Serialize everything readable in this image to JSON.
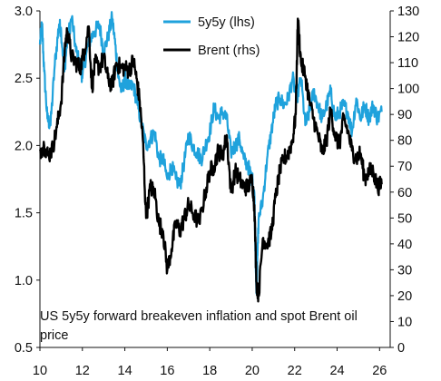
{
  "chart_data": {
    "type": "line",
    "title": "US 5y5y forward breakeven inflation and spot Brent oil price",
    "x_tick_labels": [
      "10",
      "12",
      "14",
      "16",
      "18",
      "20",
      "22",
      "24",
      "26"
    ],
    "x_range": [
      2010,
      2026.5
    ],
    "y_left": {
      "range": [
        0.5,
        3.0
      ],
      "ticks": [
        "0.5",
        "1.0",
        "1.5",
        "2.0",
        "2.5",
        "3.0"
      ]
    },
    "y_right": {
      "range": [
        0,
        130
      ],
      "ticks": [
        "0",
        "10",
        "20",
        "30",
        "40",
        "50",
        "60",
        "70",
        "80",
        "90",
        "100",
        "110",
        "120",
        "130"
      ]
    },
    "grid": false,
    "legend_position": "top-right",
    "series": [
      {
        "name": "5y5y (lhs)",
        "axis": "left",
        "color": "#1fa2dc",
        "x": [
          2010.0,
          2010.1,
          2010.2,
          2010.35,
          2010.5,
          2010.7,
          2010.9,
          2011.0,
          2011.15,
          2011.3,
          2011.5,
          2011.7,
          2011.9,
          2012.0,
          2012.2,
          2012.4,
          2012.6,
          2012.8,
          2013.0,
          2013.2,
          2013.4,
          2013.55,
          2013.7,
          2013.85,
          2014.0,
          2014.2,
          2014.4,
          2014.6,
          2014.8,
          2015.0,
          2015.2,
          2015.4,
          2015.6,
          2015.8,
          2016.0,
          2016.2,
          2016.4,
          2016.6,
          2016.8,
          2017.0,
          2017.2,
          2017.4,
          2017.6,
          2017.8,
          2018.0,
          2018.2,
          2018.4,
          2018.6,
          2018.8,
          2019.0,
          2019.2,
          2019.4,
          2019.6,
          2019.8,
          2020.0,
          2020.1,
          2020.2,
          2020.3,
          2020.5,
          2020.7,
          2020.9,
          2021.1,
          2021.3,
          2021.5,
          2021.7,
          2021.9,
          2022.1,
          2022.3,
          2022.5,
          2022.7,
          2022.9,
          2023.1,
          2023.3,
          2023.5,
          2023.7,
          2023.9,
          2024.1,
          2024.3,
          2024.5,
          2024.7,
          2024.9,
          2025.1,
          2025.3,
          2025.5,
          2025.7,
          2025.9,
          2026.1
        ],
        "y": [
          2.75,
          2.9,
          2.55,
          2.2,
          2.15,
          2.6,
          2.9,
          2.85,
          2.55,
          2.8,
          2.95,
          2.7,
          2.6,
          2.5,
          2.7,
          2.8,
          2.85,
          2.9,
          2.7,
          2.8,
          2.95,
          2.75,
          2.5,
          2.4,
          2.5,
          2.42,
          2.45,
          2.3,
          2.15,
          2.0,
          2.05,
          2.1,
          1.9,
          1.9,
          1.75,
          1.85,
          1.75,
          1.7,
          1.88,
          2.08,
          2.0,
          1.95,
          1.9,
          2.0,
          2.1,
          2.28,
          2.2,
          2.25,
          2.2,
          1.95,
          2.0,
          2.05,
          1.9,
          1.85,
          1.75,
          1.65,
          0.9,
          1.45,
          1.6,
          1.9,
          2.1,
          2.3,
          2.35,
          2.3,
          2.35,
          2.5,
          2.35,
          2.5,
          2.15,
          2.25,
          2.4,
          2.3,
          2.2,
          2.3,
          2.4,
          2.2,
          2.25,
          2.3,
          2.25,
          2.1,
          2.35,
          2.2,
          2.3,
          2.2,
          2.3,
          2.2,
          2.25
        ]
      },
      {
        "name": "Brent (rhs)",
        "axis": "right",
        "color": "#000000",
        "x": [
          2010.0,
          2010.2,
          2010.4,
          2010.6,
          2010.8,
          2011.0,
          2011.2,
          2011.3,
          2011.5,
          2011.7,
          2011.9,
          2012.1,
          2012.3,
          2012.45,
          2012.6,
          2012.8,
          2013.0,
          2013.2,
          2013.4,
          2013.6,
          2013.8,
          2014.0,
          2014.2,
          2014.4,
          2014.55,
          2014.7,
          2014.85,
          2015.0,
          2015.2,
          2015.4,
          2015.6,
          2015.8,
          2016.0,
          2016.2,
          2016.4,
          2016.6,
          2016.8,
          2017.0,
          2017.2,
          2017.5,
          2017.8,
          2018.0,
          2018.2,
          2018.4,
          2018.6,
          2018.8,
          2019.0,
          2019.2,
          2019.4,
          2019.6,
          2019.8,
          2020.0,
          2020.1,
          2020.2,
          2020.3,
          2020.5,
          2020.7,
          2020.9,
          2021.1,
          2021.3,
          2021.5,
          2021.7,
          2021.9,
          2022.05,
          2022.15,
          2022.3,
          2022.5,
          2022.7,
          2022.9,
          2023.1,
          2023.3,
          2023.5,
          2023.7,
          2023.9,
          2024.1,
          2024.3,
          2024.5,
          2024.7,
          2024.9,
          2025.1,
          2025.3,
          2025.5,
          2025.7,
          2025.9,
          2026.1
        ],
        "y": [
          76,
          78,
          74,
          77,
          85,
          95,
          118,
          122,
          112,
          110,
          108,
          115,
          124,
          100,
          110,
          108,
          112,
          104,
          101,
          110,
          108,
          108,
          107,
          111,
          104,
          95,
          80,
          50,
          62,
          60,
          48,
          45,
          30,
          38,
          48,
          45,
          50,
          55,
          52,
          48,
          60,
          68,
          70,
          76,
          74,
          82,
          60,
          68,
          65,
          62,
          62,
          65,
          55,
          25,
          20,
          42,
          40,
          44,
          58,
          68,
          73,
          75,
          80,
          90,
          127,
          110,
          105,
          95,
          88,
          82,
          75,
          80,
          92,
          82,
          78,
          88,
          84,
          76,
          73,
          75,
          65,
          68,
          68,
          62,
          63
        ]
      }
    ]
  }
}
